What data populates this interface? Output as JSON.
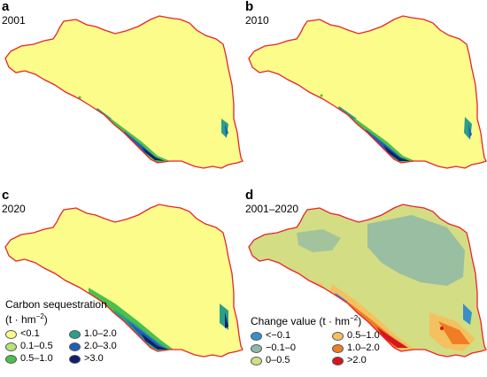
{
  "colors": {
    "boundary": "#e8232a",
    "cs_lt_0_1": "#fcfc8a",
    "cs_0_1_0_5": "#b7e37a",
    "cs_0_5_1_0": "#4cc04c",
    "cs_1_0_2_0": "#2a9f8a",
    "cs_2_0_3_0": "#1f5fb8",
    "cs_gt_3_0": "#0d1f6e",
    "ch_lt_neg0_1": "#3a8fc9",
    "ch_neg0_1_0": "#8fb8a8",
    "ch_0_0_5": "#d3dd83",
    "ch_0_5_1_0": "#f4c160",
    "ch_1_0_2_0": "#f07d24",
    "ch_gt_2_0": "#d8141e"
  },
  "panels": [
    {
      "letter": "a",
      "year": "2001"
    },
    {
      "letter": "b",
      "year": "2010"
    },
    {
      "letter": "c",
      "year": "2020"
    },
    {
      "letter": "d",
      "year": "2001–2020"
    }
  ],
  "legend_carbon": {
    "title": "Carbon sequestration",
    "unit_prefix": "(t · hm",
    "unit_exp": "−2",
    "unit_suffix": ")",
    "items": [
      {
        "label": "<0.1",
        "color": "#fcfc8a"
      },
      {
        "label": "0.1–0.5",
        "color": "#b7e37a"
      },
      {
        "label": "0.5–1.0",
        "color": "#4cc04c"
      },
      {
        "label": "1.0–2.0",
        "color": "#2a9f8a"
      },
      {
        "label": "2.0–3.0",
        "color": "#1f5fb8"
      },
      {
        "label": ">3.0",
        "color": "#0d1f6e"
      }
    ]
  },
  "legend_change": {
    "title_prefix": "Change value (t · hm",
    "title_exp": "−2",
    "title_suffix": ")",
    "items": [
      {
        "label": "<−0.1",
        "color": "#3a8fc9"
      },
      {
        "label": "−0.1–0",
        "color": "#8fb8a8"
      },
      {
        "label": "0–0.5",
        "color": "#d3dd83"
      },
      {
        "label": "0.5–1.0",
        "color": "#f4c160"
      },
      {
        "label": "1.0–2.0",
        "color": "#f07d24"
      },
      {
        "label": ">2.0",
        "color": "#d8141e"
      }
    ]
  }
}
